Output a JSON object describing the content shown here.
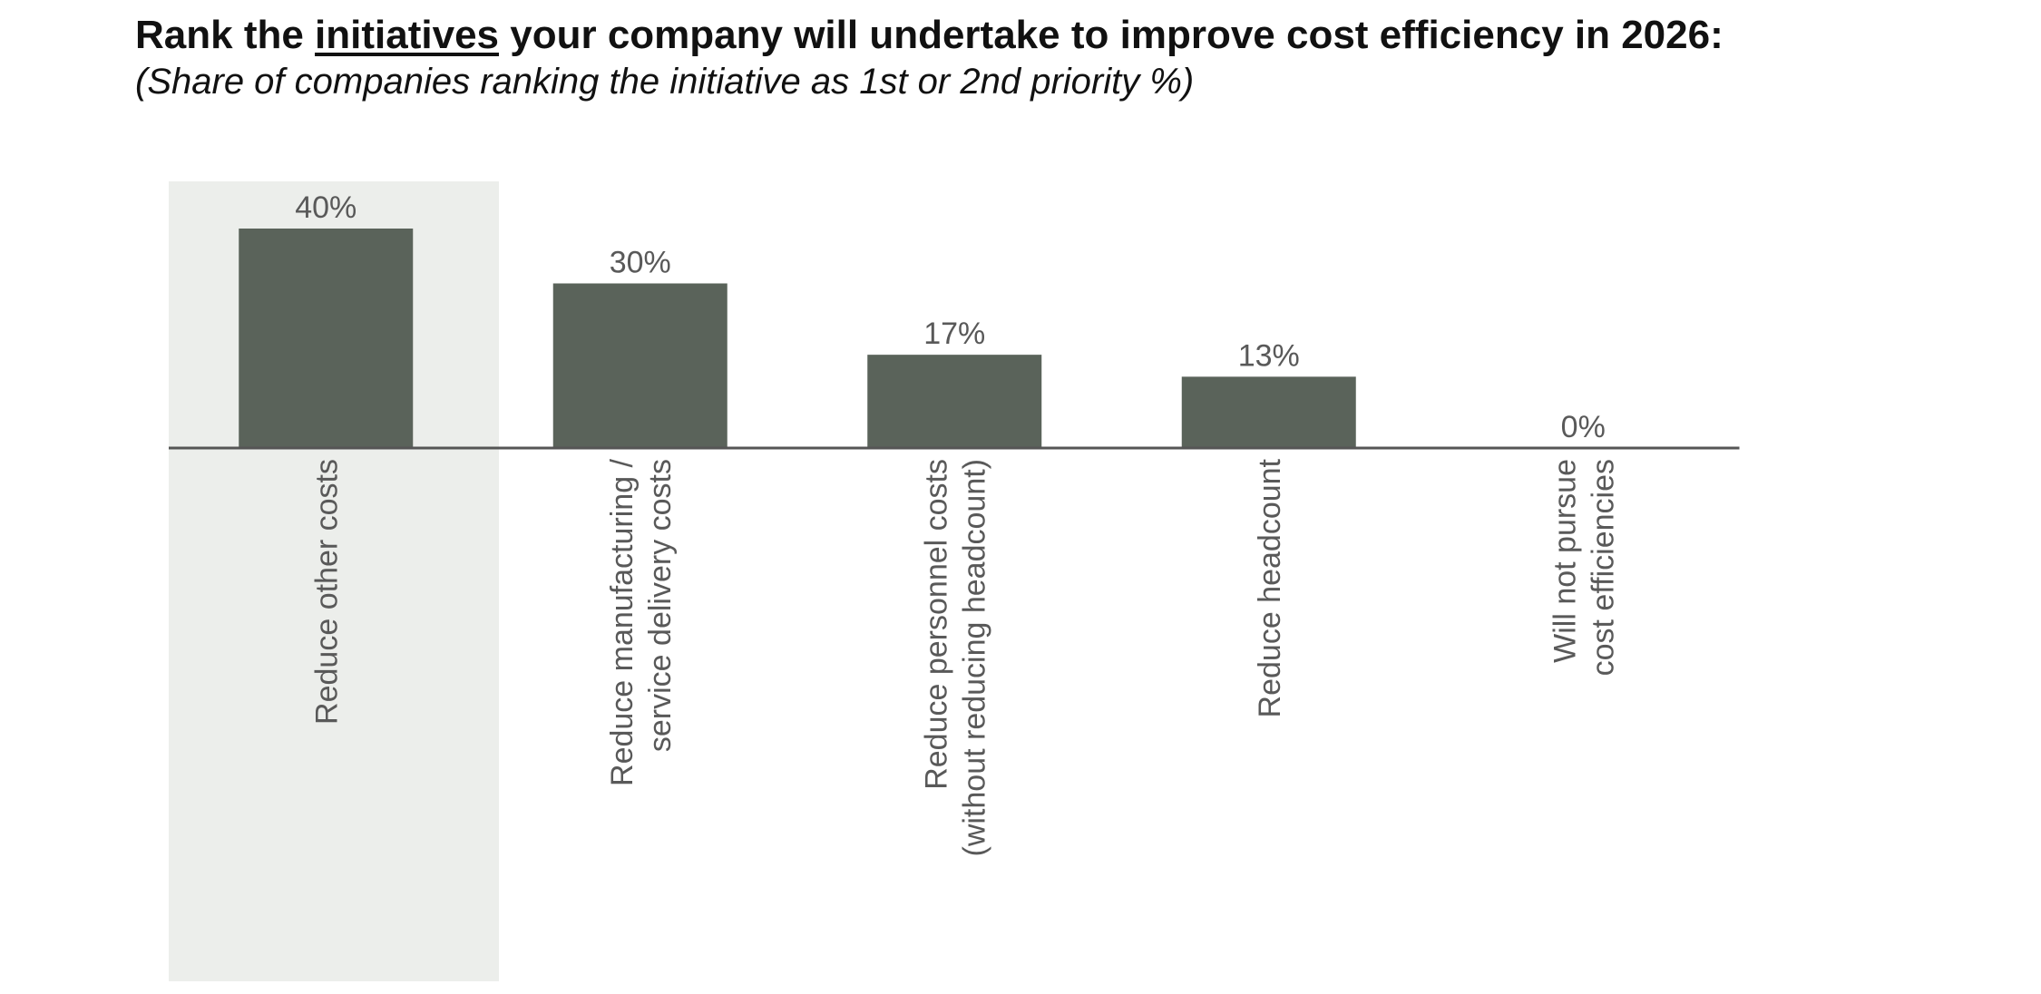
{
  "header": {
    "title_pre": "Rank the ",
    "title_emph": "initiatives",
    "title_post": " your company will undertake to improve cost efficiency in 2026:",
    "subtitle": "(Share of companies ranking the initiative as 1st or 2nd priority %)"
  },
  "chart_data": {
    "type": "bar",
    "title": "Rank the initiatives your company will undertake to improve cost efficiency in 2026:",
    "subtitle": "(Share of companies ranking the initiative as 1st or 2nd priority %)",
    "categories": [
      [
        "Reduce other costs"
      ],
      [
        "Reduce manufacturing /",
        "service delivery costs"
      ],
      [
        "Reduce personnel costs",
        "(without reducing headcount)"
      ],
      [
        "Reduce headcount"
      ],
      [
        "Will not pursue",
        "cost efficiencies"
      ]
    ],
    "values": [
      40,
      30,
      17,
      13,
      0
    ],
    "data_labels": [
      "40%",
      "30%",
      "17%",
      "13%",
      "0%"
    ],
    "highlighted_index": 0,
    "ylim": [
      0,
      40
    ],
    "xlabel": "",
    "ylabel": "",
    "grid": false,
    "colors": {
      "bar": "#5a635a",
      "highlight": "#eceeeb",
      "axis": "#555555",
      "text": "#595959"
    }
  }
}
